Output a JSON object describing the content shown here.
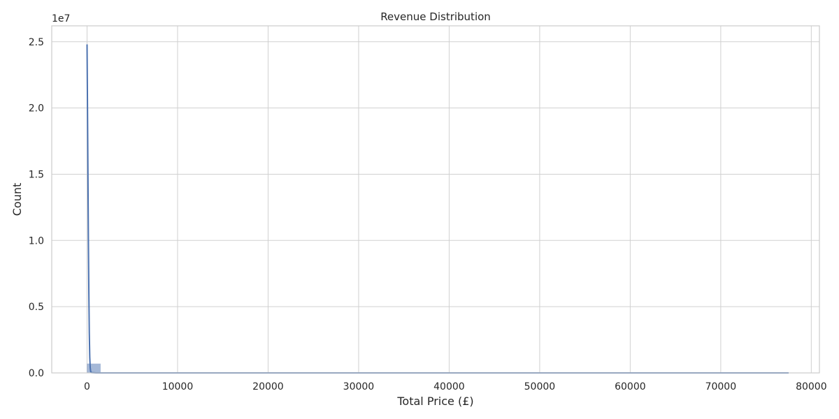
{
  "chart_data": {
    "type": "histogram",
    "title": "Revenue Distribution",
    "xlabel": "Total Price (£)",
    "ylabel": "Count",
    "y_offset_label": "1e7",
    "xlim": [
      -3900,
      80900
    ],
    "ylim": [
      0,
      26200000
    ],
    "x_ticks": [
      0,
      10000,
      20000,
      30000,
      40000,
      50000,
      60000,
      70000,
      80000
    ],
    "x_tick_labels": [
      "0",
      "10000",
      "20000",
      "30000",
      "40000",
      "50000",
      "60000",
      "70000",
      "80000"
    ],
    "y_ticks": [
      0,
      5000000,
      10000000,
      15000000,
      20000000,
      25000000
    ],
    "y_tick_labels": [
      "0.0",
      "0.5",
      "1.0",
      "1.5",
      "2.0",
      "2.5"
    ],
    "grid": true,
    "bars": {
      "bin_edges": [
        0,
        1500,
        3000,
        4500,
        6000,
        7500,
        9000,
        10500,
        12000,
        13500,
        15000,
        16500,
        18000,
        19500,
        21000,
        22500,
        24000,
        25500,
        27000,
        28500,
        30000,
        31500,
        33000,
        34500,
        36000,
        37500,
        39000,
        40500,
        42000,
        43500,
        45000,
        46500,
        48000,
        49500,
        51000,
        52500,
        54000,
        55500,
        57000,
        58500,
        60000,
        61500,
        63000,
        64500,
        66000,
        67500,
        69000,
        70500,
        72000,
        73500,
        75000,
        76500,
        78000
      ],
      "counts": [
        700000,
        300,
        40,
        12,
        6,
        3,
        2,
        1,
        1,
        1,
        0,
        0,
        1,
        0,
        0,
        0,
        0,
        0,
        0,
        0,
        0,
        0,
        0,
        0,
        0,
        0,
        0,
        0,
        0,
        0,
        0,
        0,
        0,
        0,
        0,
        0,
        0,
        0,
        0,
        0,
        0,
        0,
        0,
        0,
        0,
        0,
        0,
        0,
        0,
        0,
        0,
        1
      ],
      "color": "#4c72b0",
      "opacity": 0.5
    },
    "kde_line": {
      "x": [
        0,
        50,
        100,
        150,
        200,
        250,
        300,
        350,
        400,
        500,
        1000,
        5000,
        20000,
        77500
      ],
      "y": [
        24800000,
        20000000,
        15000000,
        10000000,
        6000000,
        3000000,
        1200000,
        400000,
        100000,
        20000,
        2000,
        100,
        10,
        0
      ],
      "color": "#4c72b0"
    }
  }
}
